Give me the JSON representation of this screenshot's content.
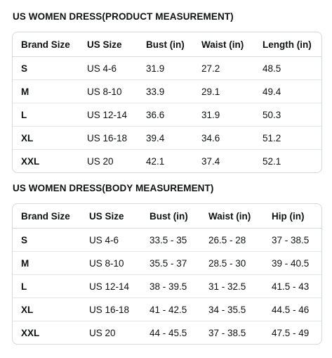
{
  "product_table": {
    "title": "US WOMEN DRESS(PRODUCT MEASUREMENT)",
    "headers": [
      "Brand Size",
      "US Size",
      "Bust (in)",
      "Waist (in)",
      "Length (in)"
    ],
    "rows": [
      [
        "S",
        "US 4-6",
        "31.9",
        "27.2",
        "48.5"
      ],
      [
        "M",
        "US 8-10",
        "33.9",
        "29.1",
        "49.4"
      ],
      [
        "L",
        "US 12-14",
        "36.6",
        "31.9",
        "50.3"
      ],
      [
        "XL",
        "US 16-18",
        "39.4",
        "34.6",
        "51.2"
      ],
      [
        "XXL",
        "US 20",
        "42.1",
        "37.4",
        "52.1"
      ]
    ]
  },
  "body_table": {
    "title": "US WOMEN DRESS(BODY MEASUREMENT)",
    "headers": [
      "Brand Size",
      "US Size",
      "Bust (in)",
      "Waist (in)",
      "Hip (in)"
    ],
    "rows": [
      [
        "S",
        "US 4-6",
        "33.5 - 35",
        "26.5 - 28",
        "37 - 38.5"
      ],
      [
        "M",
        "US 8-10",
        "35.5 - 37",
        "28.5 - 30",
        "39 - 40.5"
      ],
      [
        "L",
        "US 12-14",
        "38 - 39.5",
        "31 - 32.5",
        "41.5 - 43"
      ],
      [
        "XL",
        "US 16-18",
        "41 - 42.5",
        "34 - 35.5",
        "44.5 - 46"
      ],
      [
        "XXL",
        "US 20",
        "44 - 45.5",
        "37 - 38.5",
        "47.5 - 49"
      ]
    ]
  }
}
